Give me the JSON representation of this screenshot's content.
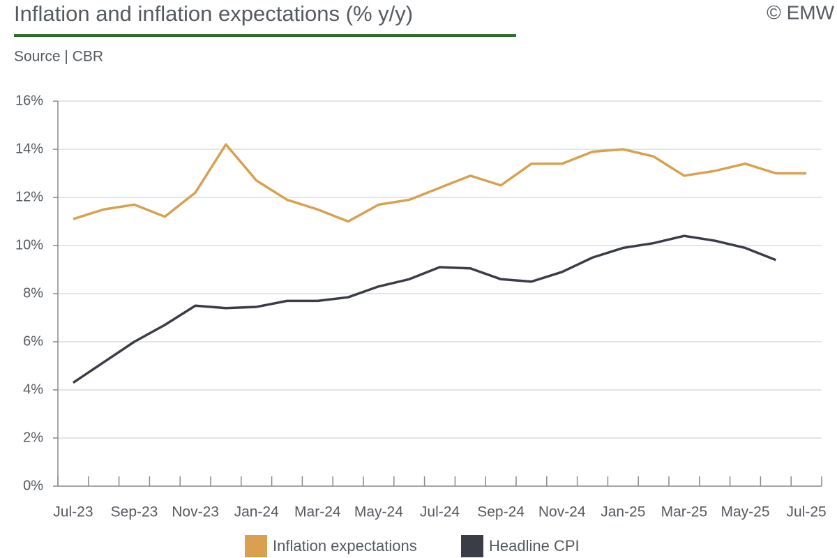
{
  "chart_data": {
    "type": "line",
    "title": "Inflation and inflation expectations (% y/y)",
    "subtitle": "Source | CBR",
    "watermark": "© EMW",
    "categories": [
      "Jul-23",
      null,
      "Sep-23",
      null,
      "Nov-23",
      null,
      "Jan-24",
      null,
      "Mar-24",
      null,
      "May-24",
      null,
      "Jul-24",
      null,
      "Sep-24",
      null,
      "Nov-24",
      null,
      "Jan-25",
      null,
      "Mar-25",
      null,
      "May-25",
      null,
      "Jul-25"
    ],
    "series": [
      {
        "name": "Inflation expectations",
        "color": "#d9a04f",
        "values": [
          11.1,
          11.5,
          11.7,
          11.2,
          12.2,
          14.2,
          12.7,
          11.9,
          11.5,
          11.0,
          11.7,
          11.9,
          12.4,
          12.9,
          12.5,
          13.4,
          13.4,
          13.9,
          14.0,
          13.7,
          12.9,
          13.1,
          13.4,
          13.0,
          13.0
        ]
      },
      {
        "name": "Headline CPI",
        "color": "#3a3d45",
        "values": [
          4.3,
          5.15,
          6.0,
          6.7,
          7.5,
          7.4,
          7.45,
          7.7,
          7.7,
          7.85,
          8.3,
          8.6,
          9.1,
          9.05,
          8.6,
          8.5,
          8.9,
          9.5,
          9.9,
          10.1,
          10.4,
          10.2,
          9.9,
          9.4,
          null
        ]
      }
    ],
    "ylim": [
      0,
      16
    ],
    "yticks": [
      {
        "value": 0,
        "label": "0%"
      },
      {
        "value": 2,
        "label": "2%"
      },
      {
        "value": 4,
        "label": "4%"
      },
      {
        "value": 6,
        "label": "6%"
      },
      {
        "value": 8,
        "label": "8%"
      },
      {
        "value": 10,
        "label": "10%"
      },
      {
        "value": 12,
        "label": "12%"
      },
      {
        "value": 14,
        "label": "14%"
      },
      {
        "value": 16,
        "label": "16%"
      }
    ],
    "grid": true,
    "legend": "bottom"
  }
}
